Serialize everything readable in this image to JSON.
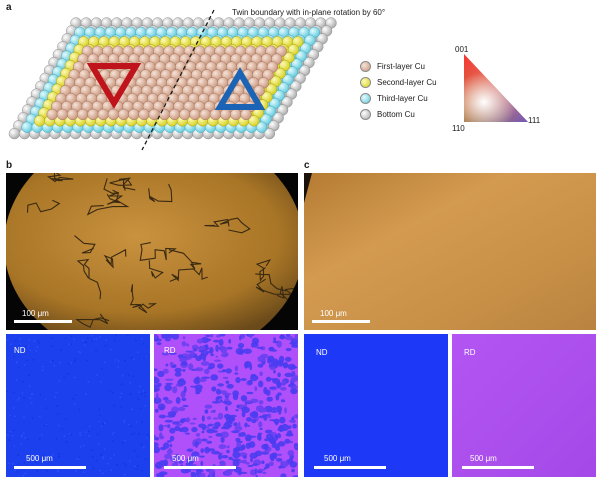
{
  "panels": {
    "a": "a",
    "b": "b",
    "c": "c"
  },
  "panel_a": {
    "twin_caption": "Twin boundary with in-plane rotation by 60°",
    "legend": [
      {
        "label": "First-layer Cu",
        "color": "#d8a78f",
        "icon": "first-layer-cu-swatch"
      },
      {
        "label": "Second-layer Cu",
        "color": "#e8e43a",
        "icon": "second-layer-cu-swatch"
      },
      {
        "label": "Third-layer Cu",
        "color": "#86dcea",
        "icon": "third-layer-cu-swatch"
      },
      {
        "label": "Bottom Cu",
        "color": "#d6d6d6",
        "icon": "bottom-cu-swatch"
      }
    ],
    "ipf_labels": {
      "top": "001",
      "bottom_left": "110",
      "bottom_right": "111"
    },
    "triangle_colors": {
      "left": "#c0141c",
      "right": "#1a63b5"
    }
  },
  "panel_b": {
    "optical_scale": "100 μm",
    "nd_label": "ND",
    "rd_label": "RD",
    "nd_scale": "500 μm",
    "rd_scale": "500 μm",
    "colors": {
      "nd": "#1a3ff2",
      "rd_base": "#b54dff",
      "rd_spots": "#4a3cf0",
      "optical": "#b07a2c"
    }
  },
  "panel_c": {
    "optical_scale": "100 μm",
    "nd_label": "ND",
    "rd_label": "RD",
    "nd_scale": "500 μm",
    "rd_scale": "500 μm",
    "colors": {
      "nd": "#1833f5",
      "rd": "#b050ef",
      "optical": "#c98f45"
    }
  }
}
